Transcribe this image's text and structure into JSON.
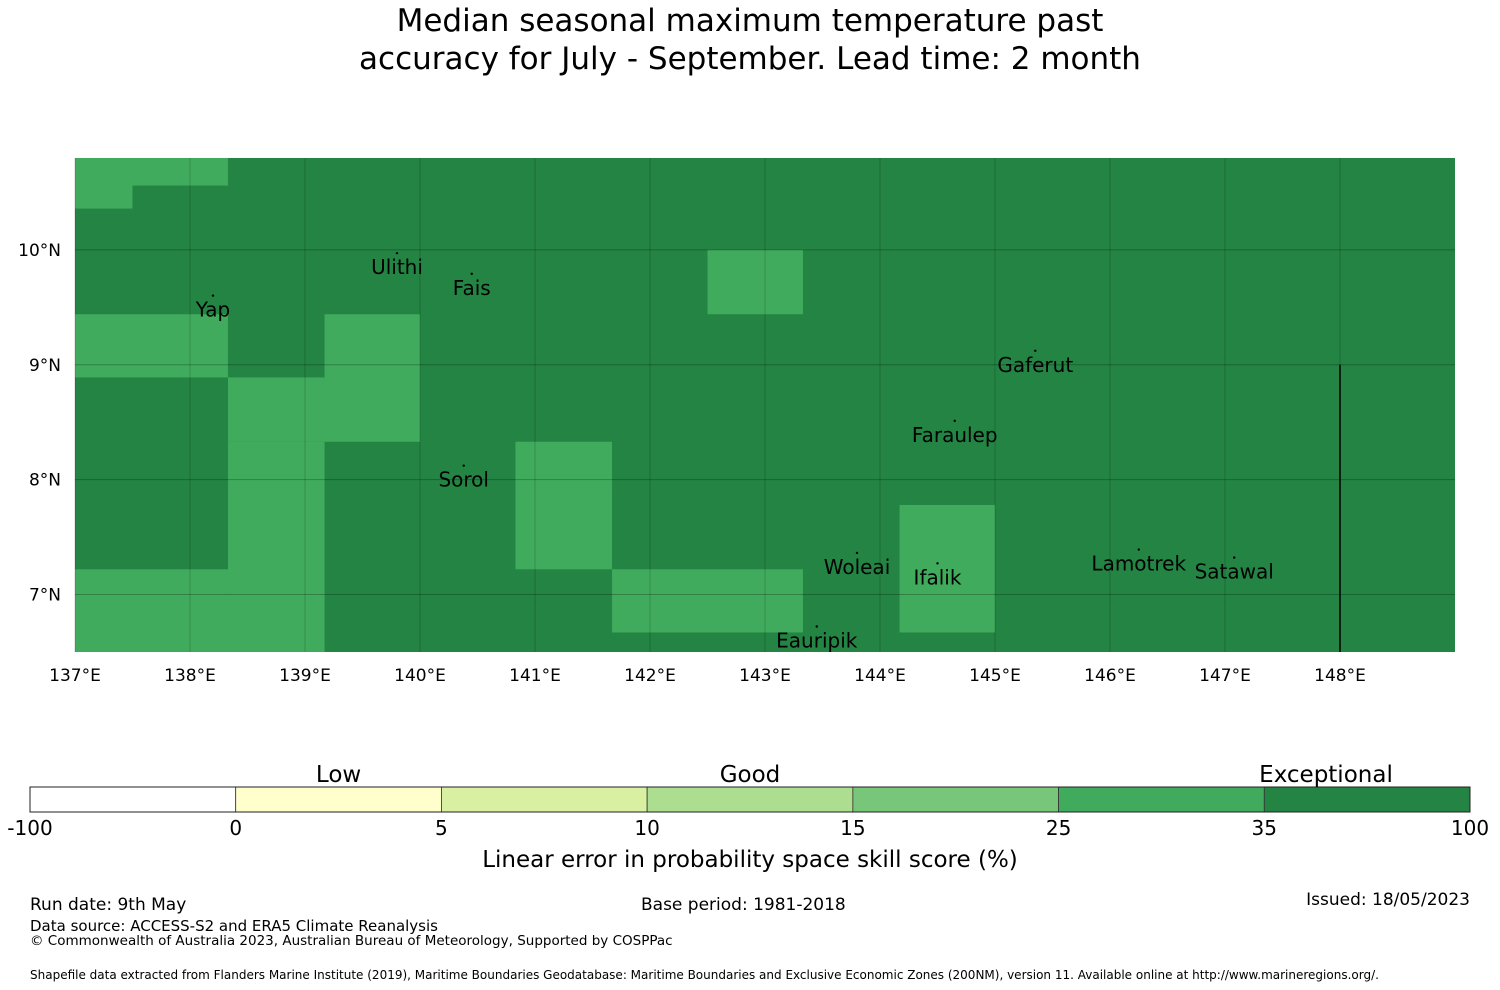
{
  "title": {
    "line1": "Median seasonal maximum temperature past",
    "line2": "accuracy for July - September. Lead time: 2 month"
  },
  "map": {
    "xticks": [
      "137°E",
      "138°E",
      "139°E",
      "140°E",
      "141°E",
      "142°E",
      "143°E",
      "144°E",
      "145°E",
      "146°E",
      "147°E",
      "148°E"
    ],
    "yticks": [
      "10°N",
      "9°N",
      "8°N",
      "7°N"
    ],
    "places": [
      {
        "name": "Ulithi",
        "lon": 139.8,
        "lat": 9.85
      },
      {
        "name": "Fais",
        "lon": 140.45,
        "lat": 9.67
      },
      {
        "name": "Yap",
        "lon": 138.2,
        "lat": 9.48
      },
      {
        "name": "Gaferut",
        "lon": 145.35,
        "lat": 9.0
      },
      {
        "name": "Faraulep",
        "lon": 144.65,
        "lat": 8.39
      },
      {
        "name": "Sorol",
        "lon": 140.38,
        "lat": 8.0
      },
      {
        "name": "Woleai",
        "lon": 143.8,
        "lat": 7.24
      },
      {
        "name": "Ifalik",
        "lon": 144.5,
        "lat": 7.15
      },
      {
        "name": "Lamotrek",
        "lon": 146.25,
        "lat": 7.27
      },
      {
        "name": "Satawal",
        "lon": 147.08,
        "lat": 7.2
      },
      {
        "name": "Eauripik",
        "lon": 143.45,
        "lat": 6.6
      }
    ],
    "colors": {
      "exceptional": "#238443",
      "good_high": "#41ab5d"
    },
    "cells_25_35": [
      [
        137.0,
        137.5,
        10.36,
        10.8
      ],
      [
        137.0,
        138.33,
        10.56,
        10.8
      ],
      [
        137.0,
        138.33,
        8.89,
        9.44
      ],
      [
        138.33,
        139.17,
        8.33,
        8.89
      ],
      [
        139.17,
        140.0,
        8.33,
        9.44
      ],
      [
        138.33,
        139.17,
        6.5,
        8.33
      ],
      [
        137.0,
        138.33,
        6.5,
        7.22
      ],
      [
        142.5,
        143.33,
        9.44,
        10.0
      ],
      [
        140.83,
        141.67,
        7.22,
        8.33
      ],
      [
        141.67,
        143.33,
        6.67,
        7.22
      ],
      [
        144.17,
        145.0,
        6.67,
        7.78
      ]
    ]
  },
  "colorbar": {
    "categories": [
      "Low",
      "Good",
      "Exceptional"
    ],
    "ticks": [
      "-100",
      "0",
      "5",
      "10",
      "15",
      "25",
      "35",
      "100"
    ],
    "colors": [
      "#ffffff",
      "#ffffcc",
      "#d9f0a3",
      "#addd8e",
      "#78c679",
      "#41ab5d",
      "#238443"
    ],
    "label": "Linear error in probability space skill score (%)"
  },
  "footer": {
    "run_date": "Run date: 9th May",
    "base_period": "Base period: 1981-2018",
    "issued": "Issued: 18/05/2023",
    "data_source": "Data source: ACCESS-S2 and ERA5 Climate Reanalysis",
    "copyright": "© Commonwealth of Australia 2023, Australian Bureau of Meteorology, Supported by COSPPac",
    "shapefile": "Shapefile data extracted from Flanders Marine Institute (2019), Maritime Boundaries Geodatabase: Maritime Boundaries and Exclusive Economic Zones (200NM), version 11. Available online at http://www.marineregions.org/."
  }
}
